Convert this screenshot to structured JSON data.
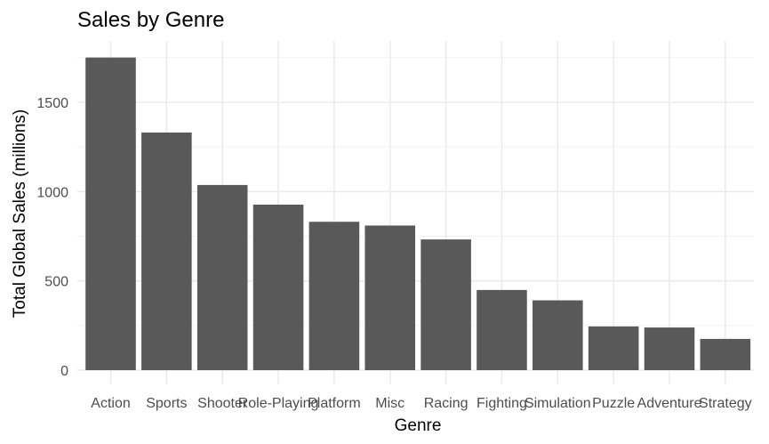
{
  "chart_data": {
    "type": "bar",
    "title": "Sales by Genre",
    "xlabel": "Genre",
    "ylabel": "Total Global Sales (millions)",
    "categories": [
      "Action",
      "Sports",
      "Shooter",
      "Role-Playing",
      "Platform",
      "Misc",
      "Racing",
      "Fighting",
      "Simulation",
      "Puzzle",
      "Adventure",
      "Strategy"
    ],
    "values": [
      1751,
      1331,
      1037,
      927,
      831,
      810,
      732,
      449,
      391,
      245,
      239,
      175
    ],
    "ylim": [
      0,
      1800
    ],
    "yticks": [
      0,
      500,
      1000,
      1500
    ],
    "grid": true,
    "colors": {
      "bar": "#595959",
      "grid": "#ebebeb",
      "background": "#ffffff"
    }
  }
}
